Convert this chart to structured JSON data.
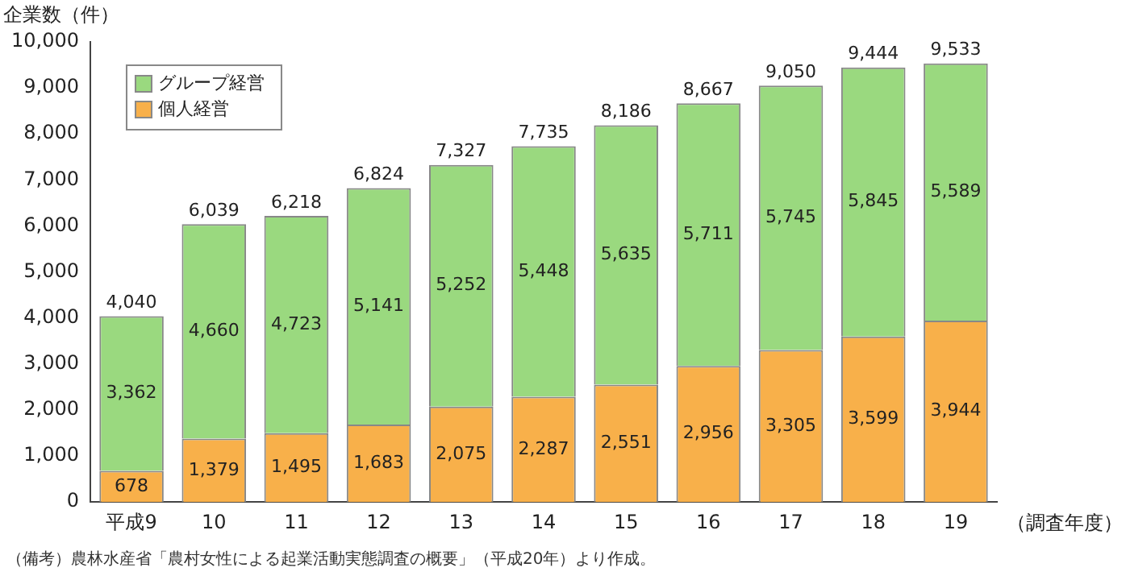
{
  "chart_data": {
    "type": "bar",
    "stacked": true,
    "ylabel": "企業数（件）",
    "xlabel": "（調査年度）",
    "categories": [
      "平成9",
      "10",
      "11",
      "12",
      "13",
      "14",
      "15",
      "16",
      "17",
      "18",
      "19"
    ],
    "series": [
      {
        "name": "個人経営",
        "color": "#f8b04a",
        "values": [
          678,
          1379,
          1495,
          1683,
          2075,
          2287,
          2551,
          2956,
          3305,
          3599,
          3944
        ],
        "value_labels": [
          "678",
          "1,379",
          "1,495",
          "1,683",
          "2,075",
          "2,287",
          "2,551",
          "2,956",
          "3,305",
          "3,599",
          "3,944"
        ]
      },
      {
        "name": "グループ経営",
        "color": "#9ad97f",
        "values": [
          3362,
          4660,
          4723,
          5141,
          5252,
          5448,
          5635,
          5711,
          5745,
          5845,
          5589
        ],
        "value_labels": [
          "3,362",
          "4,660",
          "4,723",
          "5,141",
          "5,252",
          "5,448",
          "5,635",
          "5,711",
          "5,745",
          "5,845",
          "5,589"
        ]
      }
    ],
    "totals": [
      "4,040",
      "6,039",
      "6,218",
      "6,824",
      "7,327",
      "7,735",
      "8,186",
      "8,667",
      "9,050",
      "9,444",
      "9,533"
    ],
    "legend": "top left",
    "grid": false,
    "ylim": [
      0,
      10000
    ],
    "yticks": [
      0,
      {
        "value": 1000,
        "label": "1,000"
      },
      {
        "value": 2000,
        "label": "2,000"
      },
      {
        "value": 3000,
        "label": "3,000"
      },
      {
        "value": 4000,
        "label": "4,000"
      },
      {
        "value": 5000,
        "label": "5,000"
      },
      {
        "value": 6000,
        "label": "6,000"
      },
      {
        "value": 7000,
        "label": "7,000"
      },
      {
        "value": 8000,
        "label": "8,000"
      },
      {
        "value": 9000,
        "label": "9,000"
      },
      {
        "value": 10000,
        "label": "10,000"
      }
    ],
    "annotations": [
      "（備考）農林水産省「農村女性による起業活動実態調査の概要」（平成20年）より作成。"
    ]
  }
}
